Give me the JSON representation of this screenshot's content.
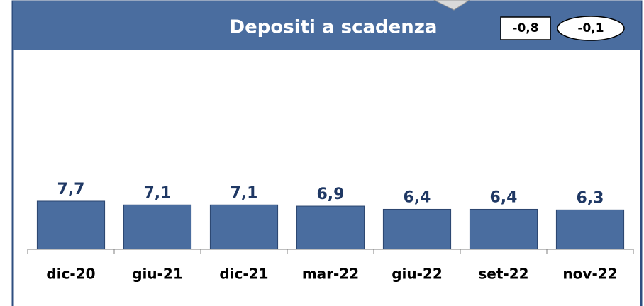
{
  "chart_data": {
    "type": "bar",
    "title": "Depositi a scadenza",
    "annotations": [
      "-0,8",
      "-0,1"
    ],
    "categories": [
      "dic-20",
      "giu-21",
      "dic-21",
      "mar-22",
      "giu-22",
      "set-22",
      "nov-22"
    ],
    "values": [
      7.7,
      7.1,
      7.1,
      6.9,
      6.4,
      6.4,
      6.3
    ],
    "value_labels": [
      "7,7",
      "7,1",
      "7,1",
      "6,9",
      "6,4",
      "6,4",
      "6,3"
    ],
    "color": "#4a6d9f",
    "ylim": [
      0,
      30
    ]
  }
}
